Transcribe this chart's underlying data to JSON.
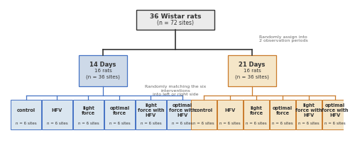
{
  "top_box_color": "#ebebeb",
  "top_box_edge": "#333333",
  "left_box_color": "#cdd9e8",
  "left_box_edge": "#4472c4",
  "right_box_color": "#f5e6c8",
  "right_box_edge": "#c97a2a",
  "left_leaf_color": "#dae6f0",
  "left_leaf_edge": "#4472c4",
  "right_leaf_color": "#f5e6c8",
  "right_leaf_edge": "#c97a2a",
  "left_leaves": [
    {
      "main": "control",
      "sub": "n = 6 sites"
    },
    {
      "main": "HFV",
      "sub": "n = 6 sites"
    },
    {
      "main": "light\nforce",
      "sub": "n = 6 sites"
    },
    {
      "main": "optimal\nforce",
      "sub": "n = 6 sites"
    },
    {
      "main": "light\nforce with\nHFV",
      "sub": "n = 6 sites"
    },
    {
      "main": "optimal\nforce with\nHFV",
      "sub": "n = 6 sites"
    }
  ],
  "right_leaves": [
    {
      "main": "control",
      "sub": "n = 6 sites"
    },
    {
      "main": "HFV",
      "sub": "n = 6 sites"
    },
    {
      "main": "light\nforce",
      "sub": "n = 6 sites"
    },
    {
      "main": "optimal\nforce",
      "sub": "n = 6 sites"
    },
    {
      "main": "light\nforce with\nHFV",
      "sub": "n = 6 sites"
    },
    {
      "main": "optimal\nforce with\nHFV",
      "sub": "n = 6 sites"
    }
  ],
  "annotation_right": "Randomly assign into\n2 observation periods",
  "annotation_mid": "Randomly matching the six\ninterventions\ninto left or right side",
  "line_color": "#333333",
  "text_color": "#333333",
  "annot_color": "#666666",
  "bg_color": "#ffffff"
}
